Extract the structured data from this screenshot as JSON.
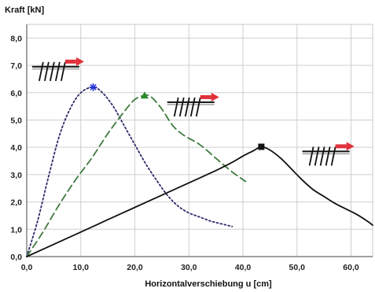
{
  "chart_data": {
    "type": "line",
    "ylabel": "Kraft [kN]",
    "xlabel": "Horizontalverschiebung u [cm]",
    "xlim": [
      0,
      64
    ],
    "ylim": [
      0,
      8.5
    ],
    "x_ticks": [
      0,
      10,
      20,
      30,
      40,
      50,
      60
    ],
    "x_tick_labels": [
      "0,0",
      "10,0",
      "20,0",
      "30,0",
      "40,0",
      "50,0",
      "60,0"
    ],
    "y_ticks": [
      0,
      1,
      2,
      3,
      4,
      5,
      6,
      7,
      8
    ],
    "y_tick_labels": [
      "0,0",
      "1,0",
      "2,0",
      "3,0",
      "4,0",
      "5,0",
      "6,0",
      "7,0",
      "8,0"
    ],
    "grid": true,
    "legend": "none",
    "series": [
      {
        "style": "dotted",
        "color": "#2b2b6a",
        "marker": "star",
        "marker_color": "#2a35d6",
        "points": [
          [
            0,
            0
          ],
          [
            2,
            1.3
          ],
          [
            4,
            2.9
          ],
          [
            6,
            4.4
          ],
          [
            8,
            5.4
          ],
          [
            10,
            6.0
          ],
          [
            12.3,
            6.2
          ],
          [
            14,
            6.0
          ],
          [
            16,
            5.5
          ],
          [
            18,
            4.8
          ],
          [
            20,
            4.1
          ],
          [
            22,
            3.4
          ],
          [
            24,
            2.8
          ],
          [
            26,
            2.25
          ],
          [
            28,
            1.85
          ],
          [
            30,
            1.6
          ],
          [
            32,
            1.45
          ],
          [
            34,
            1.3
          ],
          [
            36,
            1.2
          ],
          [
            38,
            1.1
          ]
        ],
        "peak": [
          12.3,
          6.2
        ]
      },
      {
        "style": "dashed",
        "color": "#3f7a3f",
        "marker": "triangle",
        "marker_color": "#2a8a2a",
        "points": [
          [
            0,
            0
          ],
          [
            3,
            0.9
          ],
          [
            6,
            1.9
          ],
          [
            9,
            2.8
          ],
          [
            12,
            3.6
          ],
          [
            15,
            4.5
          ],
          [
            18,
            5.3
          ],
          [
            20,
            5.75
          ],
          [
            21.8,
            5.9
          ],
          [
            23,
            5.85
          ],
          [
            25,
            5.4
          ],
          [
            27,
            4.8
          ],
          [
            29,
            4.45
          ],
          [
            32,
            4.1
          ],
          [
            35,
            3.6
          ],
          [
            38,
            3.1
          ],
          [
            40.5,
            2.75
          ]
        ],
        "peak": [
          21.8,
          5.9
        ]
      },
      {
        "style": "solid",
        "color": "#111111",
        "marker": "square",
        "marker_color": "#111111",
        "points": [
          [
            0,
            0
          ],
          [
            5,
            0.45
          ],
          [
            10,
            0.9
          ],
          [
            15,
            1.35
          ],
          [
            20,
            1.8
          ],
          [
            25,
            2.25
          ],
          [
            30,
            2.7
          ],
          [
            35,
            3.15
          ],
          [
            38,
            3.45
          ],
          [
            40,
            3.68
          ],
          [
            42,
            3.88
          ],
          [
            43.4,
            4.02
          ],
          [
            45,
            3.9
          ],
          [
            47,
            3.6
          ],
          [
            49,
            3.2
          ],
          [
            51,
            2.8
          ],
          [
            53,
            2.45
          ],
          [
            55,
            2.2
          ],
          [
            57,
            1.95
          ],
          [
            59,
            1.75
          ],
          [
            61,
            1.55
          ],
          [
            63,
            1.3
          ],
          [
            64,
            1.15
          ]
        ],
        "peak": [
          43.4,
          4.02
        ]
      }
    ],
    "pictograms": [
      {
        "name": "pictogram-dotted-series",
        "anchor": [
          1,
          6.95
        ],
        "marker_color": "#2a35d6"
      },
      {
        "name": "pictogram-dashed-series",
        "anchor": [
          26,
          5.65
        ],
        "marker_color": "#2a8a2a"
      },
      {
        "name": "pictogram-solid-series",
        "anchor": [
          51,
          3.85
        ],
        "marker_color": "#111111"
      }
    ]
  }
}
